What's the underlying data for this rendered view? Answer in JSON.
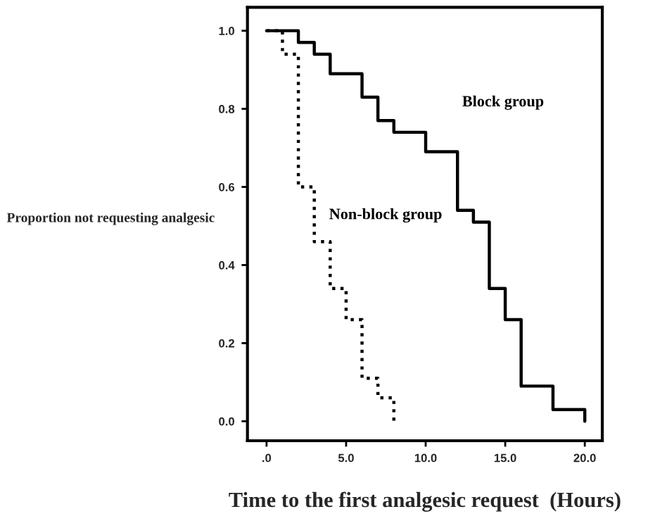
{
  "chart_data": {
    "type": "step",
    "xlabel": "Time to the first analgesic request  (Hours)",
    "ylabel": "Proportion not requesting analgesic",
    "series": [
      {
        "name": "Block group",
        "color": "#000000",
        "line_style": "solid",
        "x": [
          0,
          2,
          3,
          4,
          6,
          7,
          8,
          10,
          12,
          13,
          14,
          15,
          16,
          18,
          20
        ],
        "values": [
          1.0,
          0.97,
          0.94,
          0.89,
          0.83,
          0.77,
          0.74,
          0.69,
          0.54,
          0.51,
          0.34,
          0.26,
          0.09,
          0.03,
          0.0
        ]
      },
      {
        "name": "Non-block group",
        "color": "#000000",
        "line_style": "dotted",
        "x": [
          0,
          1,
          2,
          3,
          4,
          5,
          6,
          7,
          8
        ],
        "values": [
          1.0,
          0.94,
          0.6,
          0.46,
          0.34,
          0.26,
          0.11,
          0.06,
          0.0
        ]
      }
    ],
    "xlim": [
      -1.2,
      21.1
    ],
    "ylim": [
      -0.05,
      1.06
    ],
    "xticks": [
      {
        "value": 0,
        "label": ".0"
      },
      {
        "value": 5,
        "label": "5.0"
      },
      {
        "value": 10,
        "label": "10.0"
      },
      {
        "value": 15,
        "label": "15.0"
      },
      {
        "value": 20,
        "label": "20.0"
      }
    ],
    "yticks": [
      {
        "value": 0,
        "label": "0.0"
      },
      {
        "value": 0.2,
        "label": "0.2"
      },
      {
        "value": 0.4,
        "label": "0.4"
      },
      {
        "value": 0.6,
        "label": "0.6"
      },
      {
        "value": 0.8,
        "label": "0.8"
      },
      {
        "value": 1.0,
        "label": "1.0"
      }
    ],
    "grid": false,
    "legend": false
  }
}
